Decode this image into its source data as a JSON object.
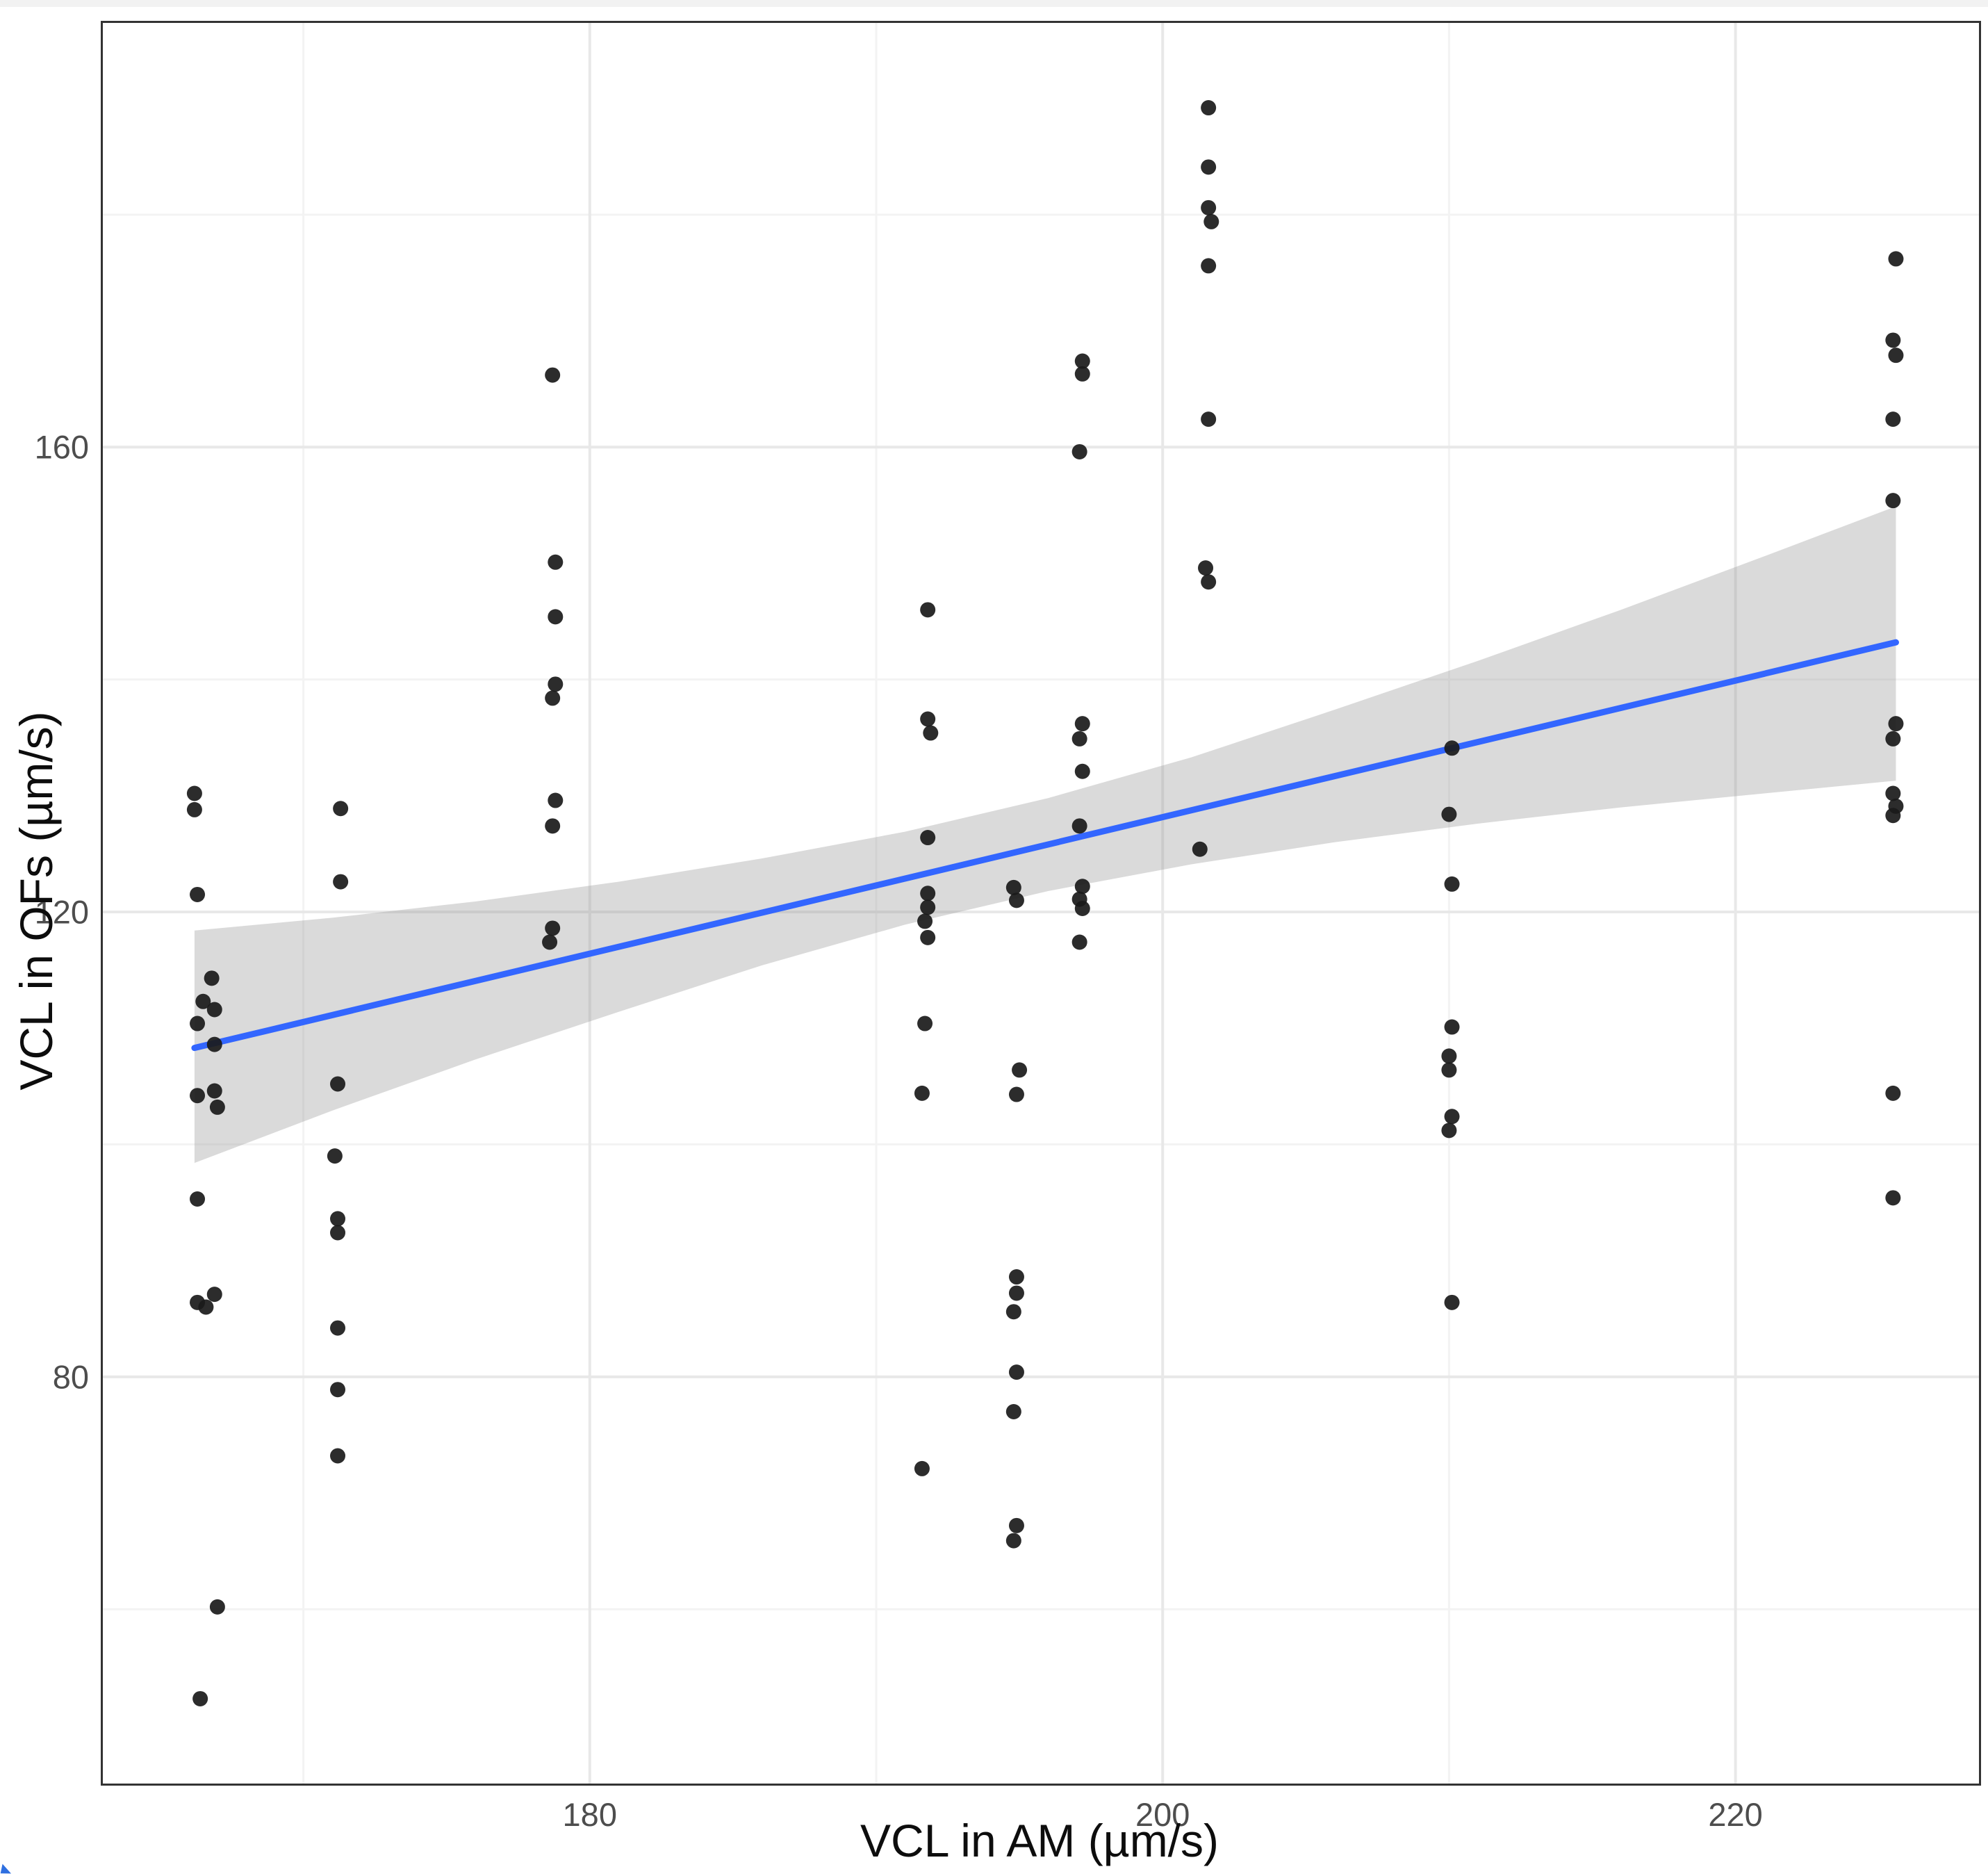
{
  "figure": {
    "background": "#ffffff"
  },
  "chart_data": {
    "type": "scatter",
    "title": "",
    "xlabel": "VCL in AM (µm/s)",
    "ylabel": "VCL in OFs (µm/s)",
    "xlim": [
      163.0,
      228.5
    ],
    "ylim": [
      45.0,
      196.5
    ],
    "x_ticks": [
      180,
      200,
      220
    ],
    "y_ticks": [
      80,
      120,
      160
    ],
    "x_minor_ticks": [
      170,
      190,
      210
    ],
    "y_minor_ticks": [
      60,
      100,
      140,
      180
    ],
    "grid": true,
    "legend": "none",
    "colors": {
      "point": "#1a1a1a",
      "regression_line": "#3366ff",
      "confidence_band": "rgba(150,150,150,0.35)",
      "major_grid": "#e8e8e8",
      "minor_grid": "#f3f3f3",
      "panel_border": "#333333",
      "tick_label": "#4d4d4d"
    },
    "points": [
      [
        166.2,
        130.2
      ],
      [
        166.2,
        128.8
      ],
      [
        166.3,
        121.5
      ],
      [
        166.8,
        114.3
      ],
      [
        166.5,
        112.3
      ],
      [
        166.9,
        111.6
      ],
      [
        166.3,
        110.4
      ],
      [
        166.9,
        108.6
      ],
      [
        166.3,
        104.2
      ],
      [
        166.9,
        104.6
      ],
      [
        167.0,
        103.2
      ],
      [
        166.3,
        95.3
      ],
      [
        166.3,
        86.4
      ],
      [
        166.9,
        87.1
      ],
      [
        166.6,
        86.0
      ],
      [
        167.0,
        60.2
      ],
      [
        166.4,
        52.3
      ],
      [
        171.3,
        128.9
      ],
      [
        171.3,
        122.6
      ],
      [
        171.2,
        105.2
      ],
      [
        171.1,
        99.0
      ],
      [
        171.2,
        93.6
      ],
      [
        171.2,
        92.4
      ],
      [
        171.2,
        84.2
      ],
      [
        171.2,
        78.9
      ],
      [
        171.2,
        73.2
      ],
      [
        178.7,
        166.2
      ],
      [
        178.8,
        150.1
      ],
      [
        178.8,
        145.4
      ],
      [
        178.8,
        139.6
      ],
      [
        178.7,
        138.4
      ],
      [
        178.8,
        129.6
      ],
      [
        178.7,
        127.4
      ],
      [
        178.7,
        118.6
      ],
      [
        178.6,
        117.4
      ],
      [
        191.8,
        146.0
      ],
      [
        191.8,
        136.6
      ],
      [
        191.9,
        135.4
      ],
      [
        191.8,
        126.4
      ],
      [
        191.8,
        121.6
      ],
      [
        191.8,
        120.4
      ],
      [
        191.7,
        119.2
      ],
      [
        191.8,
        117.8
      ],
      [
        191.7,
        110.4
      ],
      [
        191.6,
        104.4
      ],
      [
        191.6,
        72.1
      ],
      [
        194.8,
        122.1
      ],
      [
        194.9,
        121.0
      ],
      [
        195.0,
        106.4
      ],
      [
        194.9,
        104.3
      ],
      [
        194.9,
        88.6
      ],
      [
        194.9,
        87.2
      ],
      [
        194.8,
        85.6
      ],
      [
        194.9,
        80.4
      ],
      [
        194.8,
        77.0
      ],
      [
        194.9,
        67.2
      ],
      [
        194.8,
        65.9
      ],
      [
        197.2,
        167.4
      ],
      [
        197.2,
        166.3
      ],
      [
        197.1,
        159.6
      ],
      [
        197.2,
        136.2
      ],
      [
        197.1,
        134.9
      ],
      [
        197.2,
        132.1
      ],
      [
        197.1,
        127.4
      ],
      [
        197.2,
        122.2
      ],
      [
        197.1,
        121.1
      ],
      [
        197.2,
        120.3
      ],
      [
        197.1,
        117.4
      ],
      [
        201.6,
        189.2
      ],
      [
        201.6,
        184.1
      ],
      [
        201.6,
        180.6
      ],
      [
        201.7,
        179.4
      ],
      [
        201.6,
        175.6
      ],
      [
        201.6,
        162.4
      ],
      [
        201.5,
        149.6
      ],
      [
        201.6,
        148.4
      ],
      [
        201.3,
        125.4
      ],
      [
        210.1,
        134.1
      ],
      [
        210.0,
        128.4
      ],
      [
        210.1,
        122.4
      ],
      [
        210.1,
        110.1
      ],
      [
        210.0,
        107.6
      ],
      [
        210.0,
        106.4
      ],
      [
        210.1,
        102.4
      ],
      [
        210.0,
        101.2
      ],
      [
        210.1,
        86.4
      ],
      [
        225.6,
        176.2
      ],
      [
        225.5,
        169.2
      ],
      [
        225.6,
        167.9
      ],
      [
        225.5,
        162.4
      ],
      [
        225.5,
        155.4
      ],
      [
        225.6,
        136.2
      ],
      [
        225.5,
        134.9
      ],
      [
        225.5,
        130.2
      ],
      [
        225.6,
        129.1
      ],
      [
        225.5,
        128.3
      ],
      [
        225.5,
        104.4
      ],
      [
        225.5,
        95.4
      ]
    ],
    "regression_line": {
      "x1": 166.2,
      "y1": 108.3,
      "x2": 225.6,
      "y2": 143.2
    },
    "confidence_band": {
      "x": [
        166.2,
        171,
        176,
        181,
        186,
        191,
        196,
        201,
        206,
        211,
        216,
        221,
        225.6
      ],
      "upper": [
        118.4,
        119.5,
        120.9,
        122.6,
        124.6,
        126.9,
        129.8,
        133.3,
        137.4,
        141.6,
        146.0,
        150.6,
        154.9
      ],
      "lower": [
        98.4,
        102.9,
        107.3,
        111.4,
        115.4,
        118.9,
        121.8,
        124.1,
        126.0,
        127.6,
        129.0,
        130.2,
        131.3
      ]
    }
  }
}
